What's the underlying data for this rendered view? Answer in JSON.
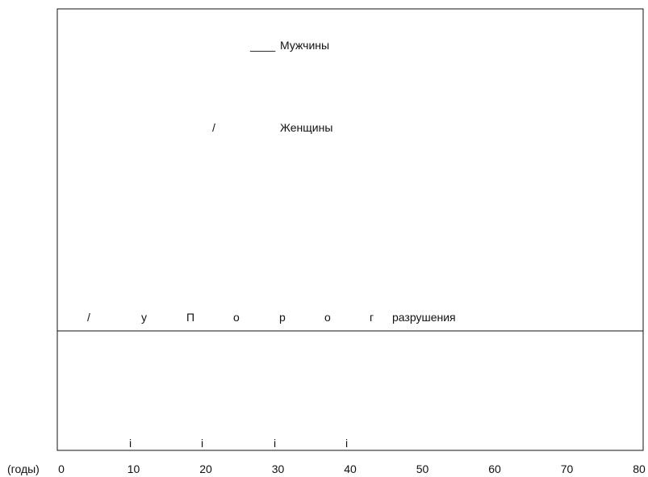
{
  "chart_data": {
    "type": "line",
    "title": "",
    "xlabel": "(годы)",
    "ylabel": "",
    "xlim": [
      0,
      80
    ],
    "x_ticks": [
      "0",
      "10",
      "20",
      "30",
      "40",
      "50",
      "60",
      "70",
      "80"
    ],
    "grid": false,
    "series": [
      {
        "name": "Мужчины",
        "legend_marker": "____",
        "values": []
      },
      {
        "name": "Женщины",
        "legend_marker": "/",
        "values": []
      }
    ],
    "threshold_line": {
      "label_fragments": [
        "/",
        "у",
        "П",
        "о",
        "р",
        "о",
        "г",
        "разрушения"
      ]
    },
    "baseline_marks": [
      "i",
      "i",
      "i",
      "i"
    ]
  }
}
